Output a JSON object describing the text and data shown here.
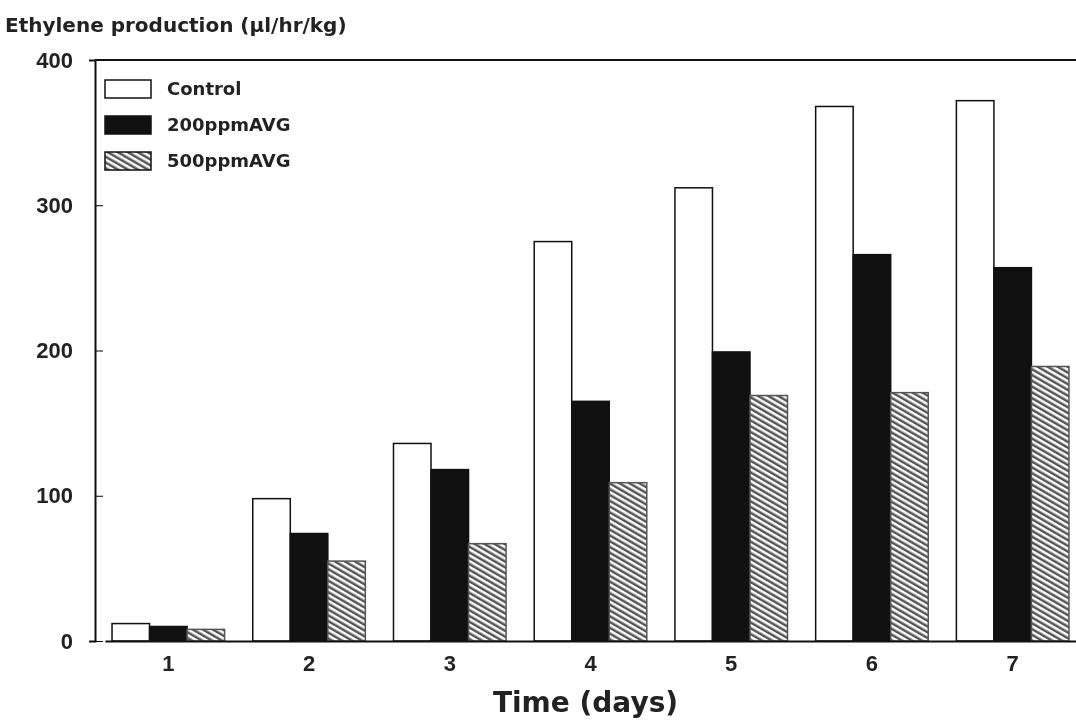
{
  "chart_data": {
    "type": "bar",
    "ylabel": "Ethylene production (μl/hr/kg)",
    "xlabel": "Time (days)",
    "categories": [
      "1",
      "2",
      "3",
      "4",
      "5",
      "6",
      "7"
    ],
    "series": [
      {
        "name": "Control",
        "color": "#ffffff",
        "values": [
          12,
          98,
          136,
          275,
          312,
          368,
          372
        ]
      },
      {
        "name": "200ppmAVG",
        "color": "#111111",
        "values": [
          10,
          74,
          118,
          165,
          199,
          266,
          257
        ]
      },
      {
        "name": "500ppmAVG",
        "color": "#555555",
        "values": [
          8,
          55,
          67,
          109,
          169,
          171,
          189
        ]
      }
    ],
    "ylim": [
      0,
      400
    ],
    "yticks": [
      0,
      100,
      200,
      300,
      400
    ],
    "grid": false,
    "legend": "top left"
  }
}
